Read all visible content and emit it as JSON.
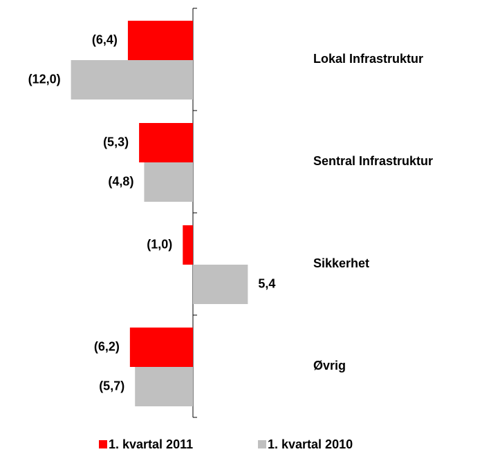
{
  "chart_data": {
    "type": "barh",
    "categories": [
      "Lokal Infrastruktur",
      "Sentral Infrastruktur",
      "Sikkerhet",
      "Øvrig"
    ],
    "series": [
      {
        "name": "1. kvartal 2011",
        "color": "#ff0000",
        "values": [
          -6.4,
          -5.3,
          -1.0,
          -6.2
        ],
        "value_labels": [
          "(6,4)",
          "(5,3)",
          "(1,0)",
          "(6,2)"
        ]
      },
      {
        "name": "1. kvartal 2010",
        "color": "#c0c0c0",
        "values": [
          -12.0,
          -4.8,
          5.4,
          -5.7
        ],
        "value_labels": [
          "(12,0)",
          "(4,8)",
          "5,4",
          "(5,7)"
        ]
      }
    ]
  }
}
